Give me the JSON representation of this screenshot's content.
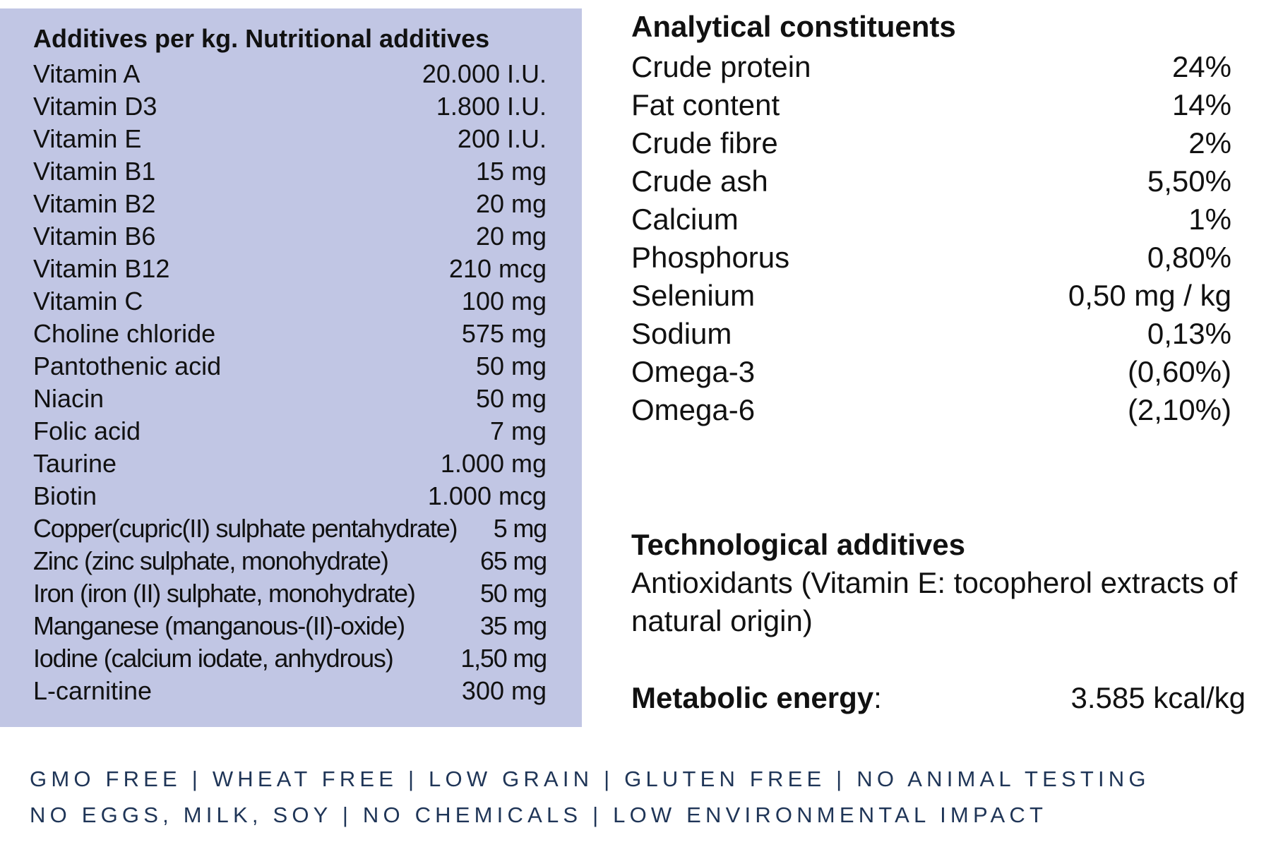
{
  "nutritional_additives": {
    "title": "Additives per kg. Nutritional additives",
    "rows": [
      {
        "name": "Vitamin A",
        "value": "20.000 I.U."
      },
      {
        "name": "Vitamin D3",
        "value": "1.800 I.U."
      },
      {
        "name": "Vitamin E",
        "value": "200 I.U."
      },
      {
        "name": "Vitamin B1",
        "value": "15 mg"
      },
      {
        "name": "Vitamin B2",
        "value": "20 mg"
      },
      {
        "name": "Vitamin B6",
        "value": "20 mg"
      },
      {
        "name": "Vitamin B12",
        "value": "210 mcg"
      },
      {
        "name": "Vitamin C",
        "value": "100 mg"
      },
      {
        "name": "Choline chloride",
        "value": "575 mg"
      },
      {
        "name": "Pantothenic acid",
        "value": "50 mg"
      },
      {
        "name": "Niacin",
        "value": "50 mg"
      },
      {
        "name": "Folic acid",
        "value": "7 mg"
      },
      {
        "name": "Taurine",
        "value": "1.000 mg"
      },
      {
        "name": "Biotin",
        "value": "1.000 mcg"
      },
      {
        "name": "Copper(cupric(II) sulphate pentahydrate)",
        "value": "5 mg"
      },
      {
        "name": "Zinc (zinc sulphate, monohydrate)",
        "value": "65 mg"
      },
      {
        "name": "Iron (iron (II) sulphate, monohydrate)",
        "value": "50 mg"
      },
      {
        "name": "Manganese (manganous-(II)-oxide)",
        "value": "35 mg"
      },
      {
        "name": "Iodine (calcium iodate, anhydrous)",
        "value": "1,50 mg"
      },
      {
        "name": "L-carnitine",
        "value": "300 mg"
      }
    ]
  },
  "analytical_constituents": {
    "title": "Analytical constituents",
    "rows": [
      {
        "name": "Crude protein",
        "value": "24%"
      },
      {
        "name": "Fat content",
        "value": "14%"
      },
      {
        "name": "Crude fibre",
        "value": "2%"
      },
      {
        "name": "Crude ash",
        "value": "5,50%"
      },
      {
        "name": "Calcium",
        "value": "1%"
      },
      {
        "name": "Phosphorus",
        "value": "0,80%"
      },
      {
        "name": "Selenium",
        "value": "0,50 mg / kg"
      },
      {
        "name": "Sodium",
        "value": "0,13%"
      },
      {
        "name": "Omega-3",
        "value": "(0,60%)"
      },
      {
        "name": "Omega-6",
        "value": "(2,10%)"
      }
    ]
  },
  "technological_additives": {
    "title": "Technological additives",
    "text": "Antioxidants (Vitamin E: tocopherol extracts of natural origin)"
  },
  "metabolic_energy": {
    "label": "Metabolic energy",
    "colon": ":",
    "value": "3.585 kcal/kg"
  },
  "claims": {
    "line1": "GMO FREE | WHEAT FREE | LOW GRAIN | GLUTEN FREE | NO ANIMAL TESTING",
    "line2": "NO EGGS, MILK, SOY | NO CHEMICALS | LOW ENVIRONMENTAL IMPACT"
  },
  "colors": {
    "panel_background": "#c1c6e4",
    "claims_text": "#1f3557"
  }
}
